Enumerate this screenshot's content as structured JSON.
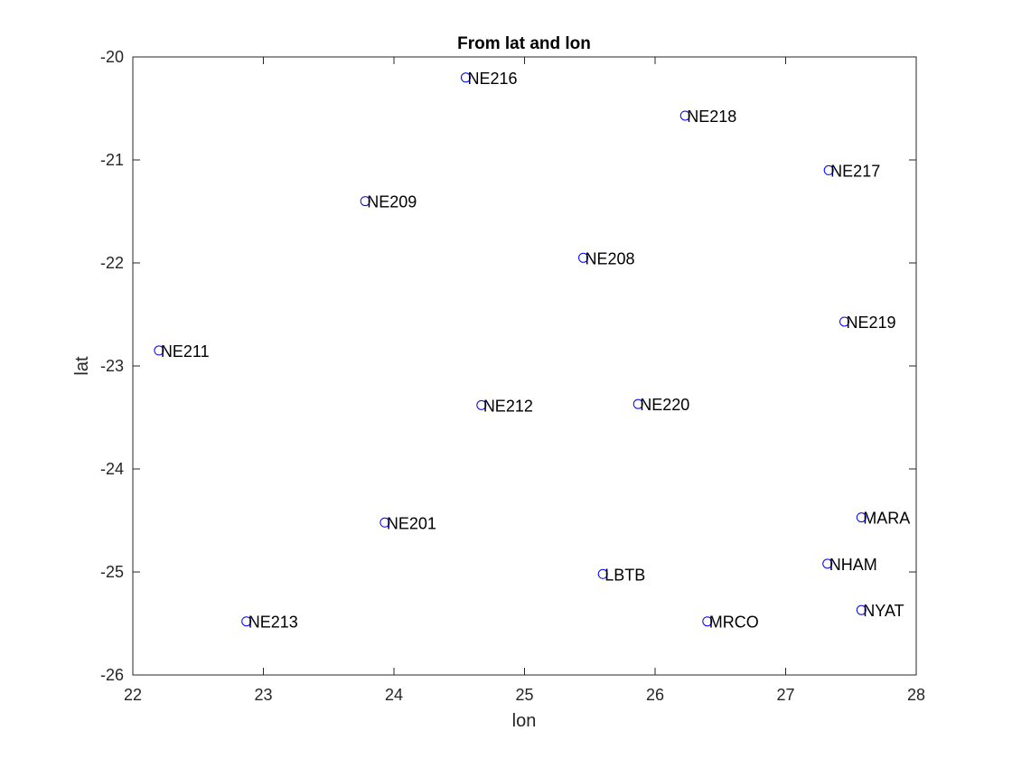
{
  "chart_data": {
    "type": "scatter",
    "title": "From lat and lon",
    "xlabel": "lon",
    "ylabel": "lat",
    "xlim": [
      22,
      28
    ],
    "ylim": [
      -26,
      -20
    ],
    "xticks": [
      "22",
      "23",
      "24",
      "25",
      "26",
      "27",
      "28"
    ],
    "yticks": [
      "-20",
      "-21",
      "-22",
      "-23",
      "-24",
      "-25",
      "-26"
    ],
    "grid": false,
    "marker": "circle",
    "marker_color": "#0000ff",
    "points": [
      {
        "label": "NE216",
        "x": 24.55,
        "y": -20.2
      },
      {
        "label": "NE218",
        "x": 26.23,
        "y": -20.57
      },
      {
        "label": "NE217",
        "x": 27.33,
        "y": -21.1
      },
      {
        "label": "NE209",
        "x": 23.78,
        "y": -21.4
      },
      {
        "label": "NE208",
        "x": 25.45,
        "y": -21.95
      },
      {
        "label": "NE219",
        "x": 27.45,
        "y": -22.57
      },
      {
        "label": "NE211",
        "x": 22.2,
        "y": -22.85
      },
      {
        "label": "NE212",
        "x": 24.67,
        "y": -23.38
      },
      {
        "label": "NE220",
        "x": 25.87,
        "y": -23.37
      },
      {
        "label": "NE201",
        "x": 23.93,
        "y": -24.52
      },
      {
        "label": "MARA",
        "x": 27.58,
        "y": -24.47
      },
      {
        "label": "NHAM",
        "x": 27.32,
        "y": -24.92
      },
      {
        "label": "LBTB",
        "x": 25.6,
        "y": -25.02
      },
      {
        "label": "NYAT",
        "x": 27.58,
        "y": -25.37
      },
      {
        "label": "NE213",
        "x": 22.87,
        "y": -25.48
      },
      {
        "label": "MRCO",
        "x": 26.4,
        "y": -25.48
      }
    ]
  }
}
